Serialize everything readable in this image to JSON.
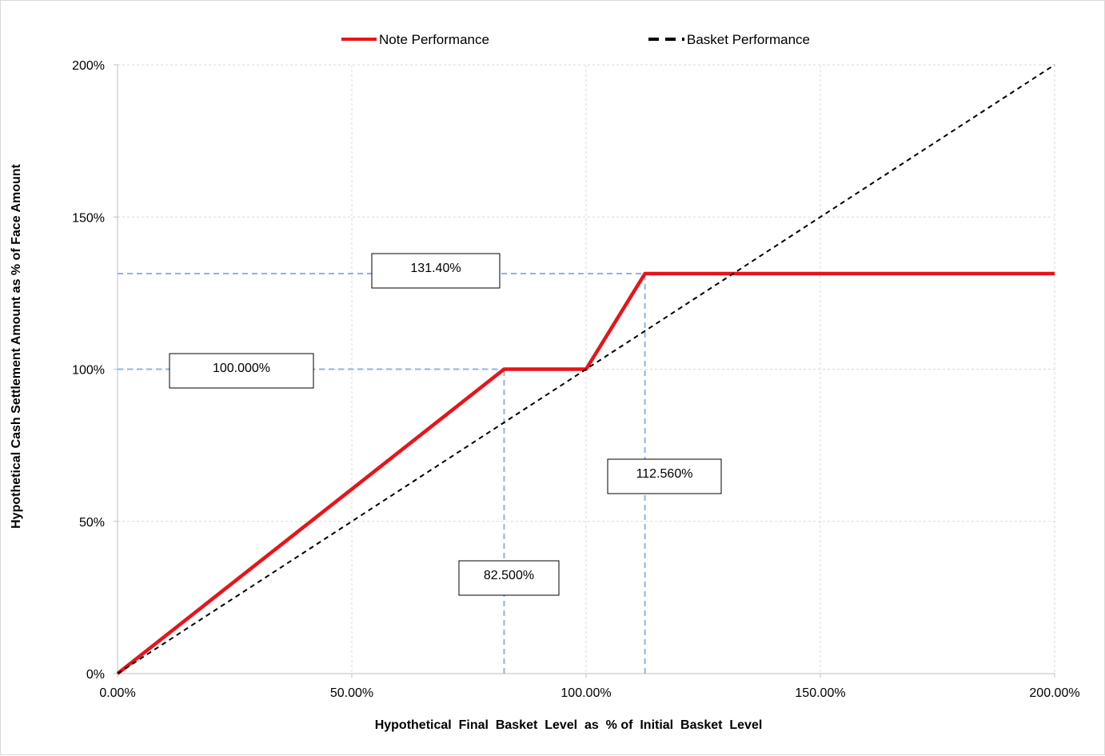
{
  "chart_data": {
    "type": "line",
    "title": "",
    "xlabel": "Hypothetical  Final  Basket  Level  as  % of  Initial  Basket  Level",
    "ylabel": "Hypothetical Cash Settlement Amount as % of Face Amount",
    "xlim": [
      0,
      200
    ],
    "ylim": [
      0,
      200
    ],
    "x_tick_labels": [
      "0.00%",
      "50.00%",
      "100.00%",
      "150.00%",
      "200.00%"
    ],
    "y_tick_labels": [
      "0%",
      "50%",
      "100%",
      "150%",
      "200%"
    ],
    "x_ticks": [
      0,
      50,
      100,
      150,
      200
    ],
    "y_ticks": [
      0,
      50,
      100,
      150,
      200
    ],
    "grid": true,
    "legend_position": "top-center",
    "series": [
      {
        "name": "Note Performance",
        "color": "#e8141b",
        "style": "solid",
        "x": [
          0,
          82.5,
          100,
          112.56,
          200
        ],
        "y": [
          0,
          100,
          100,
          131.4,
          131.4
        ]
      },
      {
        "name": "Basket Performance",
        "color": "#000000",
        "style": "dashed",
        "x": [
          0,
          200
        ],
        "y": [
          0,
          200
        ]
      }
    ],
    "reference_lines": [
      {
        "orientation": "horizontal",
        "value": 131.4,
        "from": 0,
        "to": 112.56
      },
      {
        "orientation": "horizontal",
        "value": 100,
        "from": 0,
        "to": 82.5
      },
      {
        "orientation": "vertical",
        "value": 82.5,
        "from": 0,
        "to": 100
      },
      {
        "orientation": "vertical",
        "value": 112.56,
        "from": 0,
        "to": 131.4
      }
    ],
    "annotations": [
      {
        "text": "131.40%"
      },
      {
        "text": "100.000%"
      },
      {
        "text": "112.560%"
      },
      {
        "text": "82.500%"
      }
    ]
  }
}
